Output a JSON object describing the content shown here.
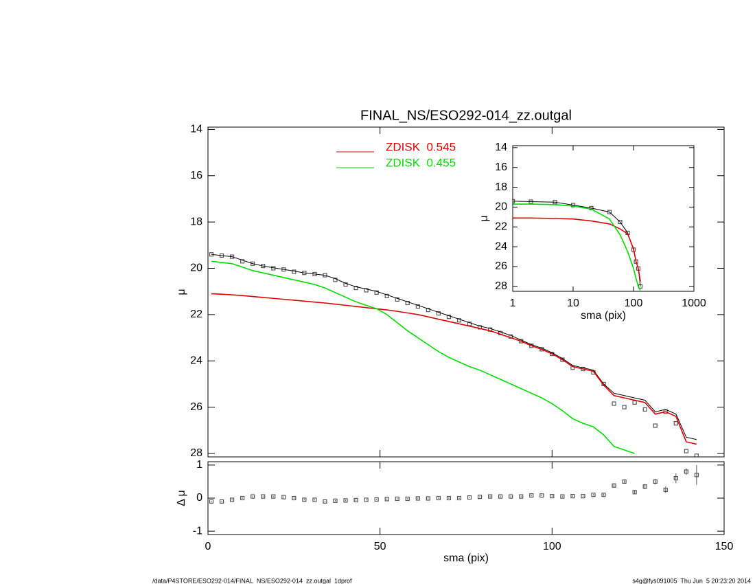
{
  "chart_data": [
    {
      "type": "line",
      "title": "FINAL_NS/ESO292-014_zz.outgal",
      "ylabel": "μ",
      "xlim": [
        0,
        150
      ],
      "xticks": [
        0,
        50,
        100,
        150
      ],
      "xtick_labels": false,
      "ylim": [
        28.15,
        13.9
      ],
      "yticks": [
        14,
        16,
        18,
        20,
        22,
        24,
        26,
        28
      ],
      "x": [
        1,
        4,
        7,
        10,
        13,
        16,
        19,
        22,
        25,
        28,
        31,
        34,
        37,
        40,
        43,
        46,
        49,
        52,
        55,
        58,
        61,
        64,
        67,
        70,
        73,
        76,
        79,
        82,
        85,
        88,
        91,
        94,
        97,
        100,
        103,
        106,
        109,
        112,
        115,
        118,
        121,
        124,
        127,
        130,
        133,
        136,
        139,
        142
      ],
      "series": [
        {
          "style": "squares",
          "color": "#555555",
          "values": [
            19.4,
            19.45,
            19.5,
            19.7,
            19.8,
            19.9,
            20.0,
            20.05,
            20.15,
            20.2,
            20.25,
            20.3,
            20.5,
            20.7,
            20.85,
            20.95,
            21.05,
            21.2,
            21.35,
            21.5,
            21.65,
            21.8,
            21.95,
            22.1,
            22.25,
            22.4,
            22.55,
            22.65,
            22.8,
            22.95,
            23.15,
            23.35,
            23.5,
            23.7,
            23.95,
            24.3,
            24.35,
            24.5,
            25.0,
            25.85,
            26.0,
            25.8,
            26.1,
            26.8,
            26.2,
            26.7,
            27.9,
            28.1
          ]
        },
        {
          "style": "line",
          "color": "#000000",
          "values": [
            19.4,
            19.45,
            19.5,
            19.65,
            19.8,
            19.9,
            19.98,
            20.05,
            20.12,
            20.2,
            20.25,
            20.3,
            20.45,
            20.65,
            20.8,
            20.9,
            21.0,
            21.15,
            21.3,
            21.45,
            21.6,
            21.75,
            21.9,
            22.05,
            22.2,
            22.35,
            22.5,
            22.6,
            22.75,
            22.9,
            23.1,
            23.3,
            23.45,
            23.65,
            23.9,
            24.2,
            24.3,
            24.4,
            25.0,
            25.4,
            25.5,
            25.6,
            25.7,
            26.2,
            26.1,
            26.3,
            27.3,
            27.4
          ]
        },
        {
          "name": "ZDISK  0.545",
          "style": "line",
          "color": "#e00000",
          "values": [
            21.1,
            21.12,
            21.15,
            21.18,
            21.22,
            21.26,
            21.3,
            21.34,
            21.38,
            21.42,
            21.46,
            21.5,
            21.55,
            21.6,
            21.65,
            21.7,
            21.75,
            21.8,
            21.86,
            21.93,
            22.0,
            22.1,
            22.2,
            22.3,
            22.4,
            22.5,
            22.6,
            22.7,
            22.85,
            23.0,
            23.15,
            23.35,
            23.5,
            23.7,
            23.95,
            24.25,
            24.35,
            24.45,
            25.05,
            25.5,
            25.6,
            25.7,
            25.8,
            26.3,
            26.2,
            26.4,
            27.5,
            27.6
          ]
        },
        {
          "name": "ZDISK  0.455",
          "style": "line",
          "color": "#00dd00",
          "values": [
            19.7,
            19.75,
            19.8,
            19.95,
            20.1,
            20.2,
            20.3,
            20.4,
            20.5,
            20.6,
            20.7,
            20.85,
            21.05,
            21.25,
            21.45,
            21.6,
            21.75,
            22.0,
            22.35,
            22.7,
            23.0,
            23.3,
            23.6,
            23.85,
            24.05,
            24.25,
            24.4,
            24.6,
            24.8,
            25.0,
            25.2,
            25.4,
            25.6,
            25.85,
            26.15,
            26.5,
            26.7,
            26.85,
            27.2,
            27.7,
            27.85,
            28.0,
            null,
            null,
            null,
            null,
            null,
            null
          ]
        }
      ]
    },
    {
      "type": "line",
      "xlabel": "sma (pix)",
      "ylabel": "μ",
      "xlog": true,
      "xlim": [
        1,
        1000
      ],
      "xticks": [
        1,
        10,
        100,
        1000
      ],
      "xtick_labels": true,
      "ylim": [
        28.5,
        13.8
      ],
      "yticks": [
        14,
        16,
        18,
        20,
        22,
        24,
        26,
        28
      ],
      "x": [
        1,
        2,
        5,
        10,
        20,
        40,
        60,
        80,
        100,
        110,
        120,
        130
      ],
      "series": [
        {
          "style": "squares",
          "color": "#555555",
          "values": [
            19.4,
            19.45,
            19.5,
            19.8,
            20.1,
            20.5,
            21.5,
            22.6,
            24.3,
            25.5,
            26.2,
            28.0
          ]
        },
        {
          "style": "line",
          "color": "#000000",
          "values": [
            19.4,
            19.45,
            19.5,
            19.8,
            20.1,
            20.5,
            21.5,
            22.6,
            24.3,
            25.5,
            26.2,
            28.0
          ]
        },
        {
          "style": "line",
          "color": "#e00000",
          "values": [
            21.1,
            21.1,
            21.15,
            21.2,
            21.4,
            21.7,
            22.2,
            22.7,
            24.2,
            25.5,
            26.2,
            27.5
          ]
        },
        {
          "style": "line",
          "color": "#00dd00",
          "values": [
            19.7,
            19.7,
            19.75,
            19.9,
            20.2,
            21.2,
            22.8,
            24.5,
            26.2,
            27.2,
            28.0,
            28.4
          ]
        }
      ]
    },
    {
      "type": "scatter",
      "xlabel": "sma (pix)",
      "ylabel": "Δ μ",
      "xlim": [
        0,
        150
      ],
      "xticks": [
        0,
        50,
        100,
        150
      ],
      "xtick_labels": true,
      "ylim": [
        -1.1,
        1.1
      ],
      "yticks": [
        -1,
        0,
        1
      ],
      "x": [
        1,
        4,
        7,
        10,
        13,
        16,
        19,
        22,
        25,
        28,
        31,
        34,
        37,
        40,
        43,
        46,
        49,
        52,
        55,
        58,
        61,
        64,
        67,
        70,
        73,
        76,
        79,
        82,
        85,
        88,
        91,
        94,
        97,
        100,
        103,
        106,
        109,
        112,
        115,
        118,
        121,
        124,
        127,
        130,
        133,
        136,
        139,
        142
      ],
      "series": [
        {
          "style": "squares",
          "color": "#555555",
          "values": [
            -0.1,
            -0.1,
            -0.05,
            0,
            0.05,
            0.05,
            0.05,
            0.03,
            0,
            -0.05,
            -0.05,
            -0.1,
            -0.08,
            -0.07,
            -0.06,
            -0.05,
            -0.04,
            -0.03,
            -0.02,
            -0.02,
            -0.01,
            -0.01,
            0,
            0,
            0,
            0.02,
            0.04,
            0.05,
            0.05,
            0.05,
            0.05,
            0.08,
            0.08,
            0.06,
            0.05,
            0.06,
            0.06,
            0.1,
            0.1,
            0.38,
            0.5,
            0.18,
            0.35,
            0.5,
            0.25,
            0.6,
            0.8,
            0.7
          ],
          "errors": [
            0.02,
            0.02,
            0.02,
            0.02,
            0.02,
            0.02,
            0.02,
            0.02,
            0.02,
            0.02,
            0.02,
            0.02,
            0.02,
            0.02,
            0.02,
            0.02,
            0.02,
            0.02,
            0.02,
            0.02,
            0.02,
            0.02,
            0.02,
            0.02,
            0.02,
            0.02,
            0.02,
            0.02,
            0.02,
            0.02,
            0.02,
            0.02,
            0.02,
            0.02,
            0.02,
            0.02,
            0.02,
            0.02,
            0.03,
            0.05,
            0.06,
            0.06,
            0.08,
            0.08,
            0.1,
            0.15,
            0.1,
            0.3
          ]
        }
      ]
    }
  ],
  "footer": {
    "left": "/data/P4STORE/ESO292-014/FINAL_NS/ESO292-014_zz.outgal_1dprof",
    "right": "s4g@fys091005  Thu Jun  5 20:23:20 2014"
  }
}
